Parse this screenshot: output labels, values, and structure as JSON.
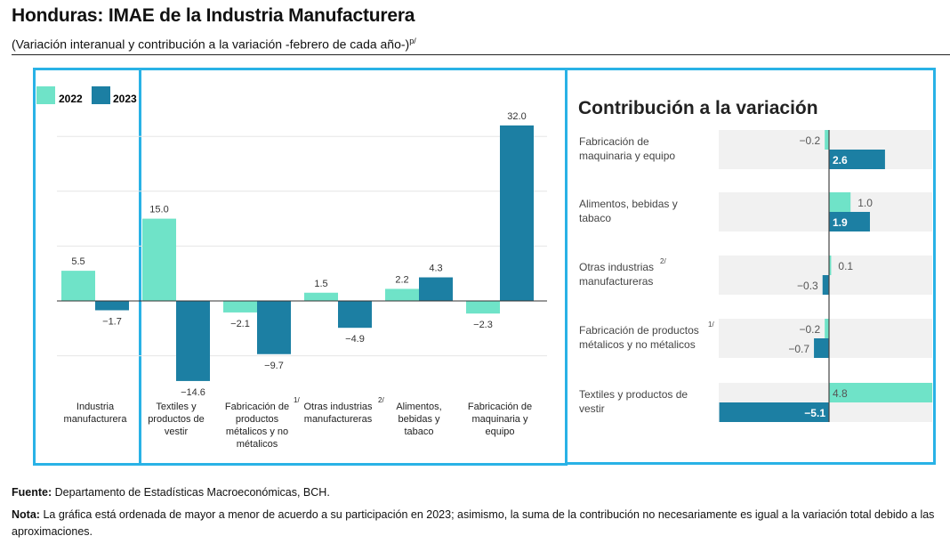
{
  "title": "Honduras: IMAE de la Industria Manufacturera",
  "subtitle": "(Variación interanual y contribución a la variación -febrero de cada año-)",
  "subtitle_sup": "p/",
  "colors": {
    "y2022": "#6fe3c8",
    "y2023": "#1c7fa3",
    "frame": "#29b2e6",
    "band": "#f1f1f1"
  },
  "chart_data": [
    {
      "type": "bar",
      "title": "",
      "legend": [
        "2022",
        "2023"
      ],
      "legend_placement": "top-left",
      "categories": [
        "Industria manufacturera",
        "Textiles y productos de vestir",
        "Fabricación de productos métalicos y no métalicos",
        "Otras industrias manufactureras",
        "Alimentos, bebidas y tabaco",
        "Fabricación de maquinaria y equipo"
      ],
      "category_sup": [
        "",
        "",
        "1/",
        "2/",
        "",
        ""
      ],
      "series": [
        {
          "name": "2022",
          "values": [
            5.5,
            15.0,
            -2.1,
            1.5,
            2.2,
            -2.3
          ]
        },
        {
          "name": "2023",
          "values": [
            -1.7,
            -14.6,
            -9.7,
            -4.9,
            4.3,
            32.0
          ]
        }
      ],
      "ylim": [
        -15,
        35
      ],
      "grid": true
    },
    {
      "type": "bar",
      "orientation": "horizontal",
      "title": "Contribución a la variación",
      "categories": [
        "Fabricación de maquinaria y equipo",
        "Alimentos, bebidas y tabaco",
        "Otras industrias manufactureras",
        "Fabricación de productos métalicos y no métalicos",
        "Textiles y productos de vestir"
      ],
      "category_sup": [
        "",
        "",
        "2/",
        "1/",
        ""
      ],
      "series": [
        {
          "name": "2022",
          "values": [
            -0.2,
            1.0,
            0.1,
            -0.2,
            4.8
          ]
        },
        {
          "name": "2023",
          "values": [
            2.6,
            1.9,
            -0.3,
            -0.7,
            -5.1
          ]
        }
      ],
      "xlim": [
        -5.1,
        4.8
      ]
    }
  ],
  "footer": {
    "source_label": "Fuente:",
    "source": "Departamento de Estadísticas Macroeconómicas, BCH.",
    "note_label": "Nota:",
    "note": "La gráfica está ordenada de mayor a menor de acuerdo a su participación en 2023; asimismo, la suma de la contribución no necesariamente es igual a la variación total debido a las aproximaciones."
  }
}
